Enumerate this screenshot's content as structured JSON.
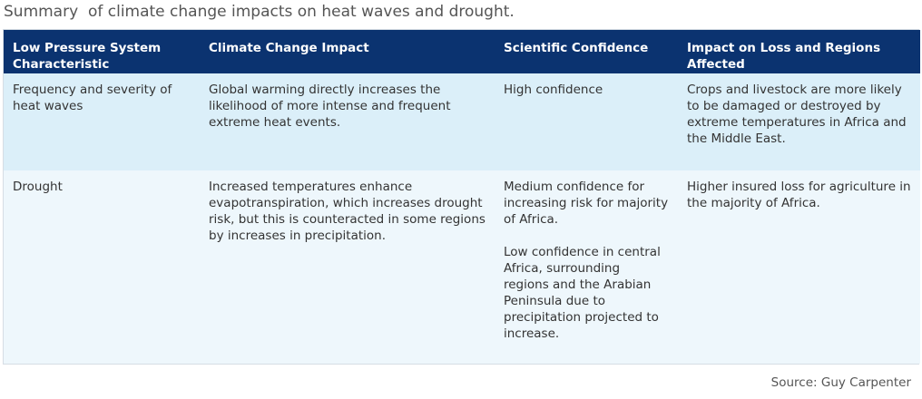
{
  "caption": "Summary  of climate change impacts on heat waves and drought.",
  "table": {
    "headers": [
      "Low Pressure System Characteristic",
      "Climate Change Impact",
      "Scientific Confidence",
      "Impact on Loss and Regions Affected"
    ],
    "rows": [
      {
        "characteristic": "Frequency and severity of heat waves",
        "impact": "Global warming directly increases the likelihood of more intense and frequent extreme heat events.",
        "confidence": [
          "High confidence"
        ],
        "loss": "Crops and livestock are more likely to be damaged or destroyed by extreme temperatures in Africa and the Middle East."
      },
      {
        "characteristic": "Drought",
        "impact": "Increased temperatures enhance evapotranspiration, which increases drought risk, but this is counteracted in some regions by increases in precipitation.",
        "confidence": [
          "Medium confidence for increasing risk for majority of Africa.",
          "Low confidence in central Africa, surrounding regions and the Arabian Peninsula due to precipitation projected to increase."
        ],
        "loss": "Higher insured loss for agriculture in the majority of Africa."
      }
    ]
  },
  "source": "Source: Guy Carpenter",
  "colors": {
    "header_bg": "#0b3370",
    "row_alt_bg": "#dbeff9",
    "row_bg": "#eef7fc"
  }
}
